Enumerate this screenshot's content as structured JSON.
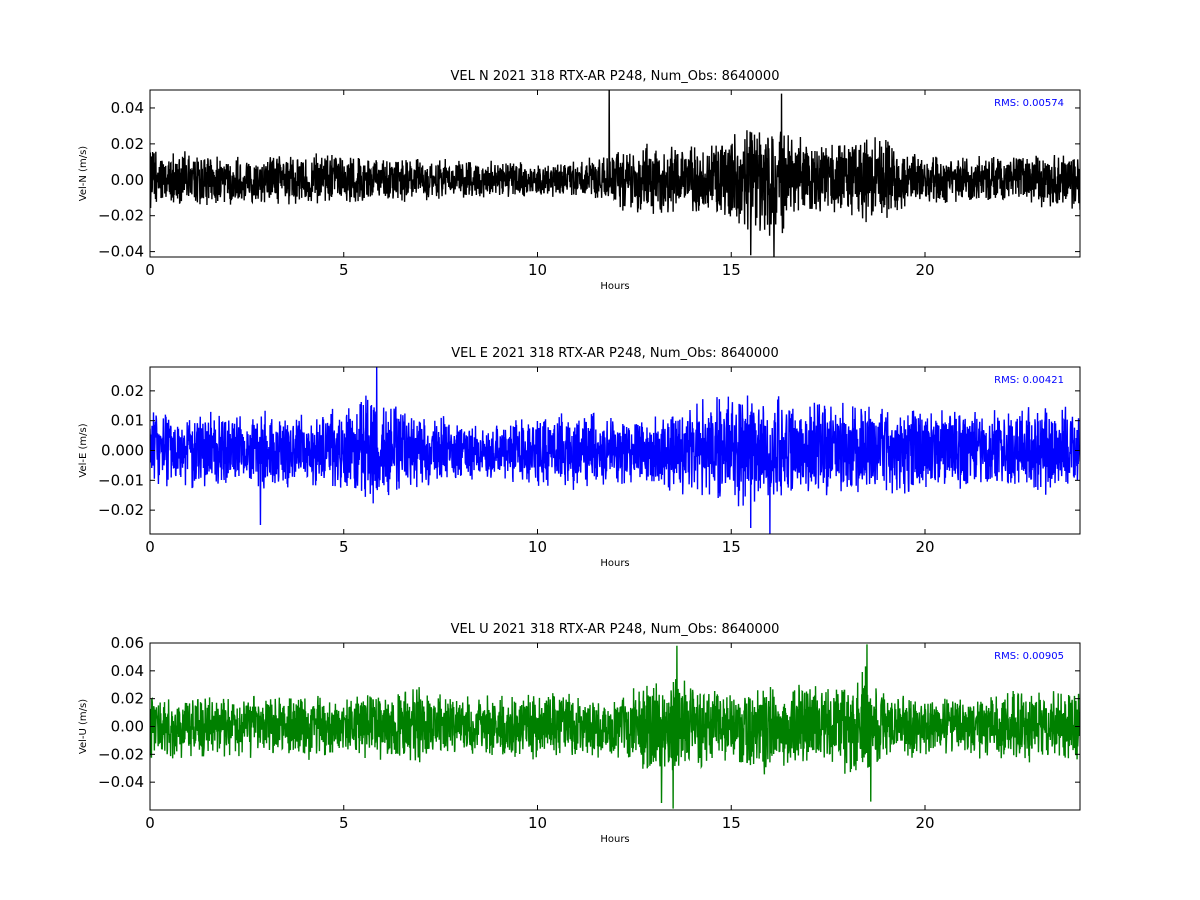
{
  "chart_data": [
    {
      "type": "line",
      "title": "VEL N 2021 318 RTX-AR  P248, Num_Obs: 8640000",
      "xlabel": "Hours",
      "ylabel": "Vel-N (m/s)",
      "xlim": [
        0,
        24
      ],
      "ylim": [
        -0.043,
        0.05
      ],
      "xticks": [
        0,
        5,
        10,
        15,
        20
      ],
      "xtick_labels": [
        "0",
        "5",
        "10",
        "15",
        "20"
      ],
      "yticks": [
        -0.04,
        -0.02,
        0.0,
        0.02,
        0.04
      ],
      "ytick_labels": [
        "−0.04",
        "−0.02",
        "0.00",
        "0.02",
        "0.04"
      ],
      "rms_text": "RMS:  0.00574",
      "color": "#000000",
      "grid": false,
      "envelope": [
        {
          "x": 0,
          "amp": 0.015
        },
        {
          "x": 1,
          "amp": 0.014
        },
        {
          "x": 2,
          "amp": 0.012
        },
        {
          "x": 3,
          "amp": 0.012
        },
        {
          "x": 4,
          "amp": 0.014
        },
        {
          "x": 5,
          "amp": 0.012
        },
        {
          "x": 6,
          "amp": 0.011
        },
        {
          "x": 7,
          "amp": 0.011
        },
        {
          "x": 8,
          "amp": 0.01
        },
        {
          "x": 9,
          "amp": 0.009
        },
        {
          "x": 10,
          "amp": 0.01
        },
        {
          "x": 11,
          "amp": 0.009
        },
        {
          "x": 12,
          "amp": 0.014
        },
        {
          "x": 13,
          "amp": 0.02
        },
        {
          "x": 14,
          "amp": 0.017
        },
        {
          "x": 15,
          "amp": 0.022
        },
        {
          "x": 16,
          "amp": 0.03
        },
        {
          "x": 17,
          "amp": 0.019
        },
        {
          "x": 18,
          "amp": 0.018
        },
        {
          "x": 18.7,
          "amp": 0.024
        },
        {
          "x": 19.5,
          "amp": 0.015
        },
        {
          "x": 20,
          "amp": 0.013
        },
        {
          "x": 21,
          "amp": 0.012
        },
        {
          "x": 22,
          "amp": 0.012
        },
        {
          "x": 23,
          "amp": 0.014
        },
        {
          "x": 24,
          "amp": 0.015
        }
      ],
      "spikes": [
        {
          "x": 11.85,
          "y": 0.05
        },
        {
          "x": 16.3,
          "y": 0.048
        },
        {
          "x": 16.1,
          "y": -0.043
        },
        {
          "x": 15.5,
          "y": -0.042
        }
      ]
    },
    {
      "type": "line",
      "title": "VEL E 2021 318 RTX-AR  P248, Num_Obs: 8640000",
      "xlabel": "Hours",
      "ylabel": "Vel-E (m/s)",
      "xlim": [
        0,
        24
      ],
      "ylim": [
        -0.028,
        0.028
      ],
      "xticks": [
        0,
        5,
        10,
        15,
        20
      ],
      "xtick_labels": [
        "0",
        "5",
        "10",
        "15",
        "20"
      ],
      "yticks": [
        -0.02,
        -0.01,
        0.0,
        0.01,
        0.02
      ],
      "ytick_labels": [
        "−0.02",
        "−0.01",
        "0.000",
        "0.01",
        "0.02"
      ],
      "rms_text": "RMS:  0.00421",
      "color": "#0000ff",
      "grid": false,
      "envelope": [
        {
          "x": 0,
          "amp": 0.012
        },
        {
          "x": 1,
          "amp": 0.011
        },
        {
          "x": 2,
          "amp": 0.011
        },
        {
          "x": 3,
          "amp": 0.012
        },
        {
          "x": 4,
          "amp": 0.011
        },
        {
          "x": 5,
          "amp": 0.013
        },
        {
          "x": 5.6,
          "amp": 0.018
        },
        {
          "x": 6.5,
          "amp": 0.012
        },
        {
          "x": 7,
          "amp": 0.011
        },
        {
          "x": 8,
          "amp": 0.009
        },
        {
          "x": 9,
          "amp": 0.008
        },
        {
          "x": 10,
          "amp": 0.011
        },
        {
          "x": 11,
          "amp": 0.012
        },
        {
          "x": 12,
          "amp": 0.01
        },
        {
          "x": 13,
          "amp": 0.01
        },
        {
          "x": 14,
          "amp": 0.015
        },
        {
          "x": 15,
          "amp": 0.017
        },
        {
          "x": 16,
          "amp": 0.016
        },
        {
          "x": 17,
          "amp": 0.015
        },
        {
          "x": 18,
          "amp": 0.014
        },
        {
          "x": 19,
          "amp": 0.013
        },
        {
          "x": 20,
          "amp": 0.013
        },
        {
          "x": 21,
          "amp": 0.012
        },
        {
          "x": 22,
          "amp": 0.012
        },
        {
          "x": 23,
          "amp": 0.013
        },
        {
          "x": 24,
          "amp": 0.013
        }
      ],
      "spikes": [
        {
          "x": 5.85,
          "y": 0.028
        },
        {
          "x": 16.0,
          "y": -0.028
        },
        {
          "x": 15.5,
          "y": -0.026
        },
        {
          "x": 2.85,
          "y": -0.025
        }
      ]
    },
    {
      "type": "line",
      "title": "VEL U 2021 318 RTX-AR  P248, Num_Obs: 8640000",
      "xlabel": "Hours",
      "ylabel": "Vel-U (m/s)",
      "xlim": [
        0,
        24
      ],
      "ylim": [
        -0.06,
        0.06
      ],
      "xticks": [
        0,
        5,
        10,
        15,
        20
      ],
      "xtick_labels": [
        "0",
        "5",
        "10",
        "15",
        "20"
      ],
      "yticks": [
        -0.04,
        -0.02,
        0.0,
        0.02,
        0.04,
        0.06
      ],
      "ytick_labels": [
        "−0.04",
        "−0.02",
        "0.00",
        "0.02",
        "0.04",
        "0.06"
      ],
      "rms_text": "RMS:  0.00905",
      "color": "#008000",
      "grid": false,
      "envelope": [
        {
          "x": 0,
          "amp": 0.02
        },
        {
          "x": 1,
          "amp": 0.02
        },
        {
          "x": 2,
          "amp": 0.021
        },
        {
          "x": 3,
          "amp": 0.018
        },
        {
          "x": 4,
          "amp": 0.022
        },
        {
          "x": 5,
          "amp": 0.018
        },
        {
          "x": 6,
          "amp": 0.023
        },
        {
          "x": 7,
          "amp": 0.026
        },
        {
          "x": 8,
          "amp": 0.018
        },
        {
          "x": 9,
          "amp": 0.02
        },
        {
          "x": 10,
          "amp": 0.022
        },
        {
          "x": 11,
          "amp": 0.021
        },
        {
          "x": 12,
          "amp": 0.018
        },
        {
          "x": 13,
          "amp": 0.035
        },
        {
          "x": 14,
          "amp": 0.03
        },
        {
          "x": 15,
          "amp": 0.022
        },
        {
          "x": 16,
          "amp": 0.03
        },
        {
          "x": 17,
          "amp": 0.025
        },
        {
          "x": 18,
          "amp": 0.03
        },
        {
          "x": 18.5,
          "amp": 0.04
        },
        {
          "x": 19,
          "amp": 0.022
        },
        {
          "x": 20,
          "amp": 0.02
        },
        {
          "x": 21,
          "amp": 0.018
        },
        {
          "x": 22,
          "amp": 0.024
        },
        {
          "x": 23,
          "amp": 0.022
        },
        {
          "x": 24,
          "amp": 0.022
        }
      ],
      "spikes": [
        {
          "x": 13.6,
          "y": 0.058
        },
        {
          "x": 18.5,
          "y": 0.059
        },
        {
          "x": 13.5,
          "y": -0.059
        },
        {
          "x": 13.2,
          "y": -0.055
        },
        {
          "x": 18.6,
          "y": -0.054
        }
      ]
    }
  ]
}
